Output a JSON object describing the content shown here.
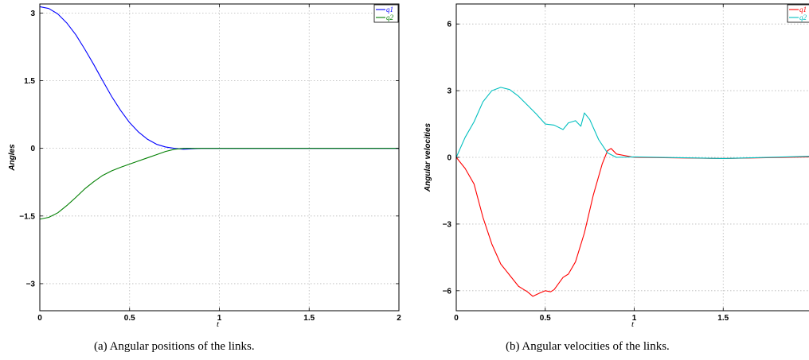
{
  "captions": {
    "a": "(a)  Angular positions of the links.",
    "b": "(b)  Angular velocities of the links."
  },
  "chart_data": [
    {
      "type": "line",
      "title": "",
      "xlabel": "t",
      "ylabel": "Angles",
      "xlim": [
        0,
        2
      ],
      "ylim": [
        -3.6,
        3.2
      ],
      "xticks": [
        0,
        0.5,
        1,
        1.5,
        2
      ],
      "xtick_labels": [
        "0",
        "0.5",
        "1",
        "1.5",
        "2"
      ],
      "yticks": [
        -3,
        -1.5,
        0,
        1.5,
        3
      ],
      "ytick_labels": [
        "−3",
        "−1.5",
        "0",
        "1.5",
        "3"
      ],
      "grid": true,
      "legend": "top-right",
      "series": [
        {
          "name": "q1",
          "color": "#0000ff",
          "x": [
            0,
            0.05,
            0.1,
            0.15,
            0.2,
            0.25,
            0.3,
            0.35,
            0.4,
            0.45,
            0.5,
            0.55,
            0.6,
            0.65,
            0.7,
            0.75,
            0.8,
            0.85,
            0.9,
            1.0,
            1.5,
            2.0
          ],
          "y": [
            3.14,
            3.1,
            2.98,
            2.78,
            2.52,
            2.2,
            1.86,
            1.5,
            1.15,
            0.84,
            0.57,
            0.36,
            0.2,
            0.09,
            0.03,
            0.0,
            -0.02,
            -0.01,
            0.0,
            0.0,
            0.0,
            0.0
          ]
        },
        {
          "name": "q2",
          "color": "#007f00",
          "x": [
            0,
            0.05,
            0.1,
            0.15,
            0.2,
            0.25,
            0.3,
            0.35,
            0.4,
            0.45,
            0.5,
            0.55,
            0.6,
            0.65,
            0.7,
            0.75,
            0.8,
            0.85,
            0.9,
            1.0,
            1.5,
            2.0
          ],
          "y": [
            -1.57,
            -1.53,
            -1.43,
            -1.27,
            -1.09,
            -0.9,
            -0.74,
            -0.6,
            -0.5,
            -0.42,
            -0.35,
            -0.28,
            -0.21,
            -0.14,
            -0.07,
            -0.02,
            0.0,
            0.0,
            0.0,
            0.0,
            0.0,
            0.0
          ]
        }
      ]
    },
    {
      "type": "line",
      "title": "",
      "xlabel": "t",
      "ylabel": "Angular velocities",
      "xlim": [
        0,
        2
      ],
      "ylim": [
        -6.9,
        6.9
      ],
      "xticks": [
        0,
        0.5,
        1,
        1.5
      ],
      "xtick_labels": [
        "0",
        "0.5",
        "1",
        "1.5"
      ],
      "yticks": [
        -6,
        -3,
        0,
        3,
        6
      ],
      "ytick_labels": [
        "−6",
        "−3",
        "0",
        "3",
        "6"
      ],
      "grid": true,
      "legend": "top-right",
      "series": [
        {
          "name": "q1",
          "color": "#ff0000",
          "x": [
            0,
            0.05,
            0.1,
            0.15,
            0.2,
            0.25,
            0.3,
            0.35,
            0.38,
            0.4,
            0.43,
            0.47,
            0.5,
            0.53,
            0.55,
            0.6,
            0.63,
            0.67,
            0.72,
            0.77,
            0.82,
            0.85,
            0.87,
            0.9,
            1.0,
            1.5,
            2.0
          ],
          "y": [
            0,
            -0.5,
            -1.2,
            -2.7,
            -3.9,
            -4.8,
            -5.3,
            -5.8,
            -5.95,
            -6.05,
            -6.25,
            -6.1,
            -6.0,
            -6.05,
            -5.95,
            -5.4,
            -5.25,
            -4.7,
            -3.4,
            -1.7,
            -0.3,
            0.3,
            0.4,
            0.15,
            0.0,
            -0.05,
            0.02
          ]
        },
        {
          "name": "q2",
          "color": "#00bfbf",
          "x": [
            0,
            0.05,
            0.1,
            0.15,
            0.2,
            0.25,
            0.3,
            0.35,
            0.4,
            0.45,
            0.5,
            0.55,
            0.6,
            0.63,
            0.67,
            0.7,
            0.72,
            0.75,
            0.8,
            0.85,
            0.9,
            1.0,
            1.5,
            2.0
          ],
          "y": [
            0,
            0.9,
            1.6,
            2.5,
            3.0,
            3.15,
            3.05,
            2.75,
            2.35,
            1.95,
            1.5,
            1.45,
            1.25,
            1.55,
            1.65,
            1.4,
            2.0,
            1.7,
            0.8,
            0.2,
            0.0,
            0.02,
            -0.05,
            0.05
          ]
        }
      ]
    }
  ]
}
